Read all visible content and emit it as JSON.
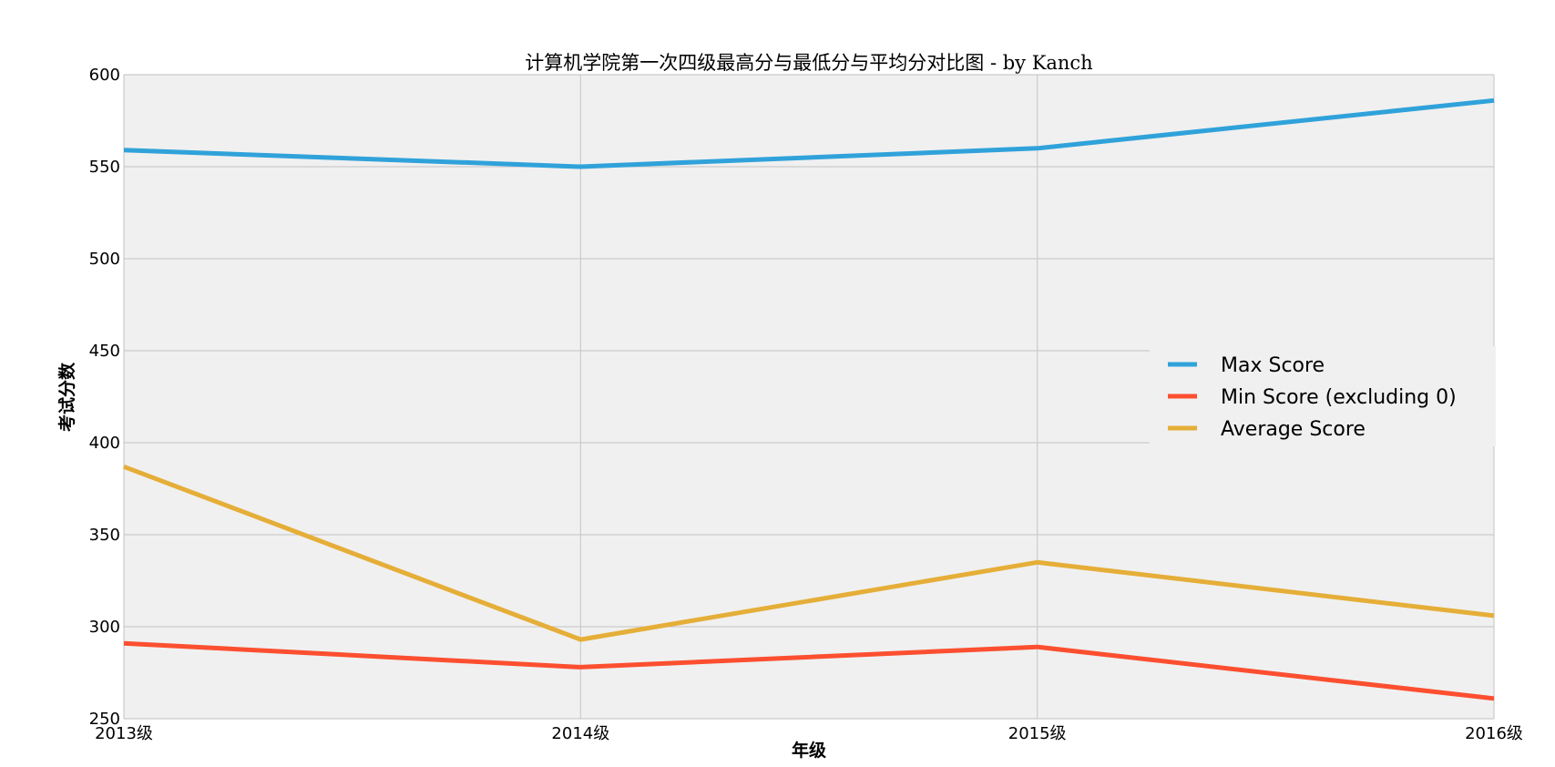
{
  "chart_data": {
    "type": "line",
    "title": "计算机学院第一次四级最高分与最低分与平均分对比图 - by Kanch",
    "xlabel": "年级",
    "ylabel": "考试分数",
    "categories": [
      "2013级",
      "2014级",
      "2015级",
      "2016级"
    ],
    "ylim": [
      250,
      600
    ],
    "yticks": [
      250,
      300,
      350,
      400,
      450,
      500,
      550,
      600
    ],
    "grid": true,
    "legend_position": "center-right",
    "background_color": "#f0f0f0",
    "grid_color": "#cbcbcb",
    "series": [
      {
        "name": "Max Score",
        "color": "#30a2da",
        "values": [
          559,
          550,
          560,
          586
        ]
      },
      {
        "name": "Min Score (excluding 0)",
        "color": "#fc4f30",
        "values": [
          291,
          278,
          289,
          261
        ]
      },
      {
        "name": "Average Score",
        "color": "#e5ae38",
        "values": [
          387,
          293,
          335,
          306
        ]
      }
    ]
  }
}
